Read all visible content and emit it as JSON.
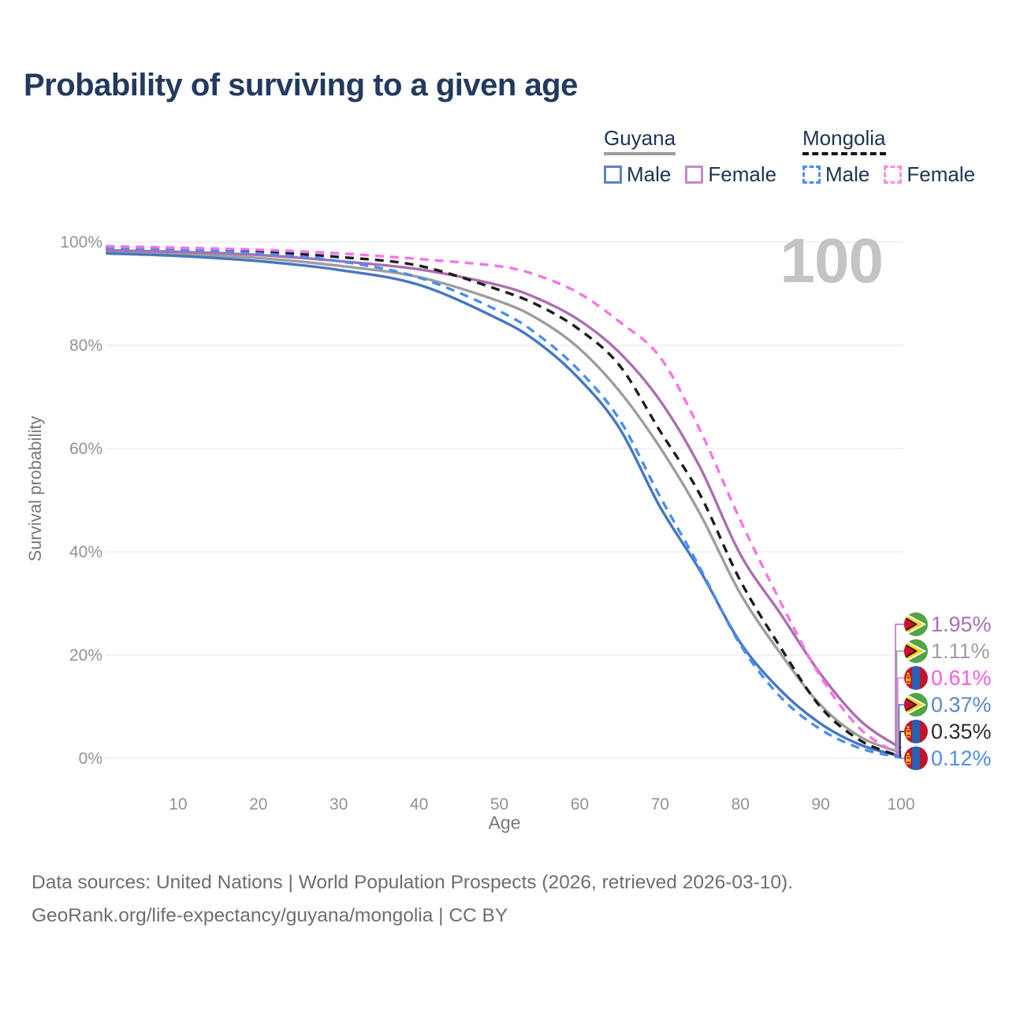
{
  "page": {
    "title": "Probability of surviving to a given age",
    "watermark": "100",
    "footer": {
      "line1": "Data sources: United Nations | World Population Prospects (2026, retrieved 2026-03-10).",
      "line2": "GeoRank.org/life-expectancy/guyana/mongolia | CC BY"
    }
  },
  "legend": {
    "groups": [
      {
        "id": "guyana",
        "label": "Guyana",
        "line_style": "solid",
        "underline_color": "#9e9e9e",
        "items": [
          {
            "label": "Male",
            "color": "#5b84c4",
            "dashed": false
          },
          {
            "label": "Female",
            "color": "#c48bc4",
            "dashed": false
          }
        ]
      },
      {
        "id": "mongolia",
        "label": "Mongolia",
        "line_style": "dashed",
        "underline_color": "#141414",
        "items": [
          {
            "label": "Male",
            "color": "#4b8ef2",
            "dashed": true
          },
          {
            "label": "Female",
            "color": "#fc8ae8",
            "dashed": true
          }
        ]
      }
    ]
  },
  "chart_data": {
    "type": "line",
    "title": "Probability of surviving to a given age",
    "xlabel": "Age",
    "ylabel": "Survival probability",
    "xlim": [
      0,
      100
    ],
    "ylim": [
      0,
      100
    ],
    "grid": "horizontal",
    "xticks": [
      10,
      20,
      30,
      40,
      50,
      60,
      70,
      80,
      90,
      100
    ],
    "yticks": {
      "values": [
        0,
        20,
        40,
        60,
        80,
        100
      ],
      "labels": [
        "0%",
        "20%",
        "40%",
        "60%",
        "80%",
        "100%"
      ]
    },
    "x": [
      1,
      10,
      20,
      30,
      40,
      50,
      55,
      60,
      65,
      70,
      75,
      80,
      85,
      90,
      95,
      100
    ],
    "series": [
      {
        "name": "Guyana Female",
        "country": "Guyana",
        "sex": "female",
        "color": "#ab6fb0",
        "label_color": "#a86fb5",
        "dashed": false,
        "z": 2,
        "end_label": "1.95%",
        "values": [
          98.4,
          98.1,
          97.5,
          96.3,
          94.7,
          91.6,
          88.9,
          84.8,
          78.5,
          69.3,
          56.3,
          39.5,
          28.0,
          16.3,
          7.2,
          1.95
        ]
      },
      {
        "name": "Guyana Both Sexes",
        "country": "Guyana",
        "sex": "both",
        "color": "#9e9e9e",
        "label_color": "#9aa0a6",
        "dashed": false,
        "z": 1,
        "end_label": "1.11%",
        "values": [
          98.1,
          97.7,
          96.9,
          95.4,
          93.2,
          88.5,
          84.9,
          79.3,
          71.0,
          60.2,
          47.3,
          31.9,
          20.3,
          10.3,
          4.1,
          1.11
        ]
      },
      {
        "name": "Mongolia Female",
        "country": "Mongolia",
        "sex": "female",
        "color": "#f873e6",
        "label_color": "#fb5ce4",
        "dashed": true,
        "z": 6,
        "end_label": "0.61%",
        "values": [
          99.2,
          98.9,
          98.5,
          97.8,
          96.7,
          95.3,
          93.4,
          90.0,
          84.5,
          77.7,
          63.5,
          46.1,
          30.3,
          15.8,
          5.6,
          0.61
        ]
      },
      {
        "name": "Guyana Male",
        "country": "Guyana",
        "sex": "male",
        "color": "#4577c2",
        "label_color": "#5b87c9",
        "dashed": false,
        "z": 3,
        "end_label": "0.37%",
        "values": [
          97.8,
          97.3,
          96.3,
          94.6,
          91.7,
          85.0,
          80.3,
          73.4,
          63.8,
          48.7,
          36.3,
          22.4,
          13.2,
          6.7,
          2.6,
          0.37
        ]
      },
      {
        "name": "Mongolia Both Sexes",
        "country": "Mongolia",
        "sex": "both",
        "color": "#1c1c1c",
        "label_color": "#2b2b2b",
        "dashed": true,
        "z": 4,
        "end_label": "0.35%",
        "values": [
          99.0,
          98.7,
          98.1,
          97.1,
          95.4,
          90.7,
          87.6,
          83.0,
          76.0,
          63.4,
          51.0,
          34.4,
          21.5,
          9.9,
          3.4,
          0.35
        ]
      },
      {
        "name": "Mongolia Male",
        "country": "Mongolia",
        "sex": "male",
        "color": "#4b8ef2",
        "label_color": "#4b8ef2",
        "dashed": true,
        "z": 5,
        "end_label": "0.12%",
        "values": [
          98.85,
          98.5,
          97.8,
          96.3,
          93.1,
          86.6,
          81.8,
          75.0,
          65.5,
          50.7,
          36.8,
          22.0,
          11.9,
          5.6,
          1.9,
          0.12
        ]
      }
    ],
    "flag_colors": {
      "guyana": {
        "green": "#52a447",
        "white": "#ffffff",
        "yellow": "#fcd116",
        "black": "#141414",
        "red": "#ce1126"
      },
      "mongolia": {
        "red": "#c0132e",
        "blue": "#2b5fb0",
        "yellow": "#f9cf02"
      }
    }
  }
}
